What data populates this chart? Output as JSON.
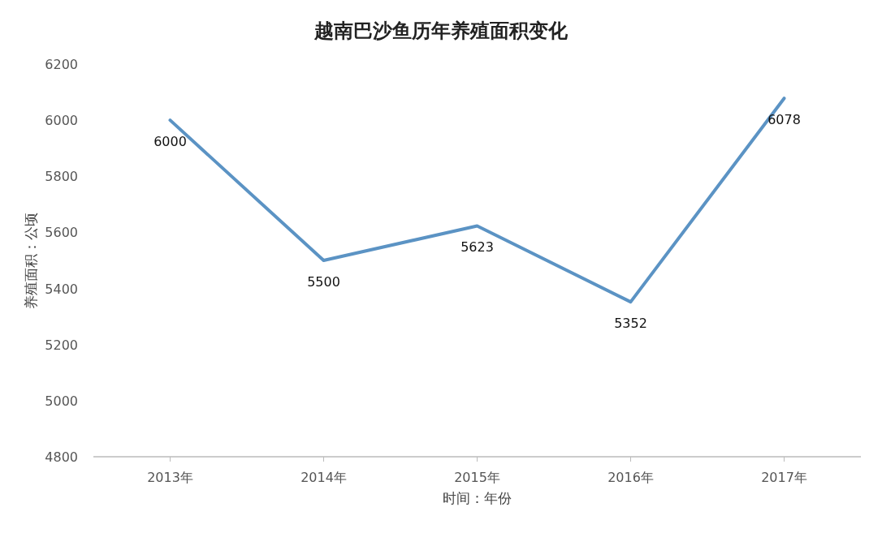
{
  "chart_data": {
    "type": "line",
    "title": "越南巴沙鱼历年养殖面积变化",
    "xlabel": "时间：年份",
    "ylabel": "养殖面积：公顷",
    "categories": [
      "2013年",
      "2014年",
      "2015年",
      "2016年",
      "2017年"
    ],
    "series": [
      {
        "color": "#5b93c4",
        "values": [
          6000,
          5500,
          5623,
          5352,
          6078
        ]
      }
    ],
    "ylim": [
      4800,
      6200
    ],
    "yticks": [
      4800,
      5000,
      5200,
      5400,
      5600,
      5800,
      6000,
      6200
    ],
    "data_labels": true,
    "line_style": "solid"
  }
}
